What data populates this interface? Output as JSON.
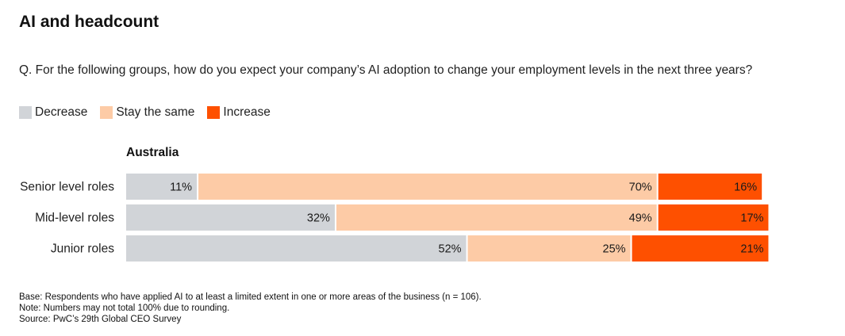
{
  "title": "AI and headcount",
  "question": "Q. For the following groups, how do you expect your company’s AI adoption to change your employment levels in the next three years?",
  "colors": {
    "decrease": "#d1d4d8",
    "stay": "#fdcba6",
    "increase": "#fe5000"
  },
  "legend": [
    {
      "label": "Decrease",
      "color": "#d1d4d8"
    },
    {
      "label": "Stay the same",
      "color": "#fdcba6"
    },
    {
      "label": "Increase",
      "color": "#fe5000"
    }
  ],
  "group_label": "Australia",
  "chart_data": {
    "type": "bar",
    "orientation": "horizontal",
    "stacked": true,
    "categories": [
      "Senior level roles",
      "Mid-level roles",
      "Junior roles"
    ],
    "series": [
      {
        "name": "Decrease",
        "values": [
          11,
          32,
          52
        ],
        "labels": [
          "11%",
          "32%",
          "52%"
        ]
      },
      {
        "name": "Stay the same",
        "values": [
          70,
          49,
          25
        ],
        "labels": [
          "70%",
          "49%",
          "25%"
        ]
      },
      {
        "name": "Increase",
        "values": [
          16,
          17,
          21
        ],
        "labels": [
          "16%",
          "17%",
          "21%"
        ]
      }
    ],
    "xlim": [
      0,
      100
    ],
    "grid": false,
    "legend_position": "top-left"
  },
  "footnotes": [
    "Base: Respondents who have applied AI to at least a limited extent in one or more areas of the business (n = 106).",
    "Note: Numbers may not total 100% due to rounding.",
    "Source: PwC’s 29th Global CEO Survey"
  ]
}
